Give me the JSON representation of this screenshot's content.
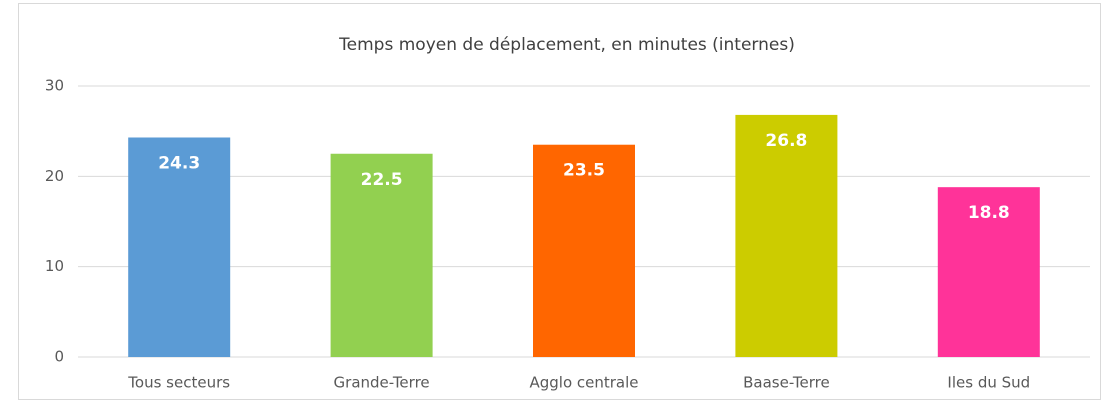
{
  "chart_data": {
    "type": "bar",
    "title": "Temps moyen de déplacement, en minutes (internes)",
    "categories": [
      "Tous secteurs",
      "Grande-Terre",
      "Agglo centrale",
      "Baase-Terre",
      "Iles du Sud"
    ],
    "values": [
      24.3,
      22.5,
      23.5,
      26.8,
      18.8
    ],
    "colors": [
      "#5b9bd5",
      "#92d050",
      "#ff6600",
      "#cccc00",
      "#ff3399"
    ],
    "ylim": [
      0,
      30
    ],
    "yticks": [
      0,
      10,
      20,
      30
    ],
    "grid": true
  }
}
